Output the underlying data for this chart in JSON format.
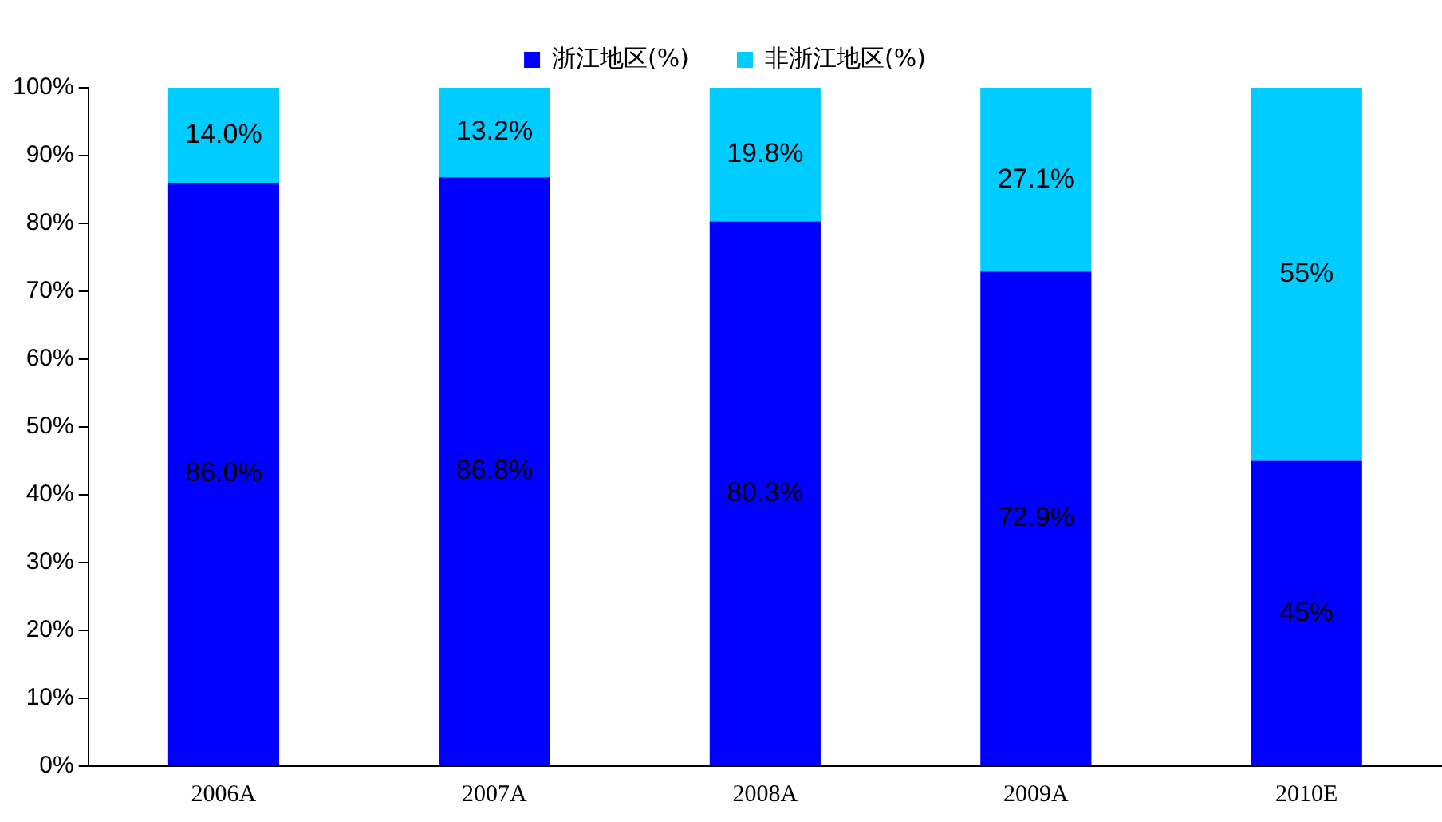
{
  "chart_data": {
    "type": "bar",
    "stacked": true,
    "categories": [
      "2006A",
      "2007A",
      "2008A",
      "2009A",
      "2010E"
    ],
    "series": [
      {
        "name": "浙江地区(%)",
        "color": "#0000ff",
        "values": [
          86.0,
          86.8,
          80.3,
          72.9,
          45
        ],
        "value_labels": [
          "86.0%",
          "86.8%",
          "80.3%",
          "72.9%",
          "45%"
        ]
      },
      {
        "name": "非浙江地区(%)",
        "color": "#00ccff",
        "values": [
          14.0,
          13.2,
          19.8,
          27.1,
          55
        ],
        "value_labels": [
          "14.0%",
          "13.2%",
          "19.8%",
          "27.1%",
          "55%"
        ]
      }
    ],
    "ylim": [
      0,
      100
    ],
    "yticks": [
      {
        "value": 0,
        "label": "0%"
      },
      {
        "value": 10,
        "label": "10%"
      },
      {
        "value": 20,
        "label": "20%"
      },
      {
        "value": 30,
        "label": "30%"
      },
      {
        "value": 40,
        "label": "40%"
      },
      {
        "value": 50,
        "label": "50%"
      },
      {
        "value": 60,
        "label": "60%"
      },
      {
        "value": 70,
        "label": "70%"
      },
      {
        "value": 80,
        "label": "80%"
      },
      {
        "value": 90,
        "label": "90%"
      },
      {
        "value": 100,
        "label": "100%"
      }
    ],
    "grid": false,
    "legend": "top"
  }
}
